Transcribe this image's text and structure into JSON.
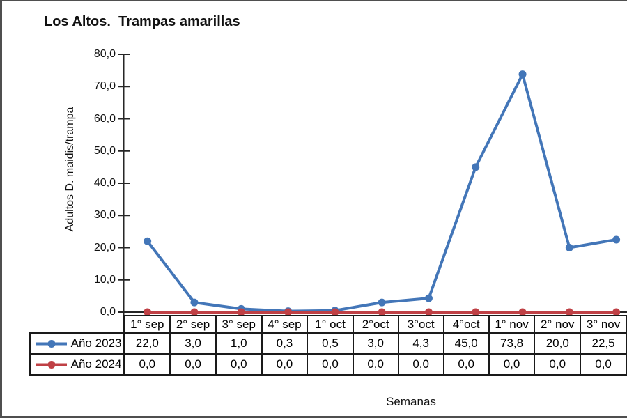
{
  "frame": {
    "background": "#ffffff",
    "border_color": "#4f4f4f"
  },
  "chart_data": {
    "type": "line",
    "title": "Los Altos.  Trampas amarillas",
    "xlabel": "Semanas",
    "ylabel": "Adultos D. maidis/trampa",
    "ylim": [
      0,
      80
    ],
    "y_tick_step": 10,
    "y_tick_labels": [
      "0,0",
      "10,0",
      "20,0",
      "30,0",
      "40,0",
      "50,0",
      "60,0",
      "70,0",
      "80,0"
    ],
    "grid": false,
    "legend_position": "table-rows-left",
    "axis_color": "#262626",
    "categories": [
      "1° sep",
      "2° sep",
      "3° sep",
      "4° sep",
      "1° oct",
      "2°oct",
      "3°oct",
      "4°oct",
      "1° nov",
      "2° nov",
      "3° nov"
    ],
    "series": [
      {
        "name": "Año 2023",
        "color": "#4376B8",
        "values": [
          22.0,
          3.0,
          1.0,
          0.3,
          0.5,
          3.0,
          4.3,
          45.0,
          73.8,
          20.0,
          22.5
        ],
        "display_values": [
          "22,0",
          "3,0",
          "1,0",
          "0,3",
          "0,5",
          "3,0",
          "4,3",
          "45,0",
          "73,8",
          "20,0",
          "22,5"
        ]
      },
      {
        "name": "Año 2024",
        "color": "#BF4045",
        "values": [
          0.0,
          0.0,
          0.0,
          0.0,
          0.0,
          0.0,
          0.0,
          0.0,
          0.0,
          0.0,
          0.0
        ],
        "display_values": [
          "0,0",
          "0,0",
          "0,0",
          "0,0",
          "0,0",
          "0,0",
          "0,0",
          "0,0",
          "0,0",
          "0,0",
          "0,0"
        ]
      }
    ]
  }
}
